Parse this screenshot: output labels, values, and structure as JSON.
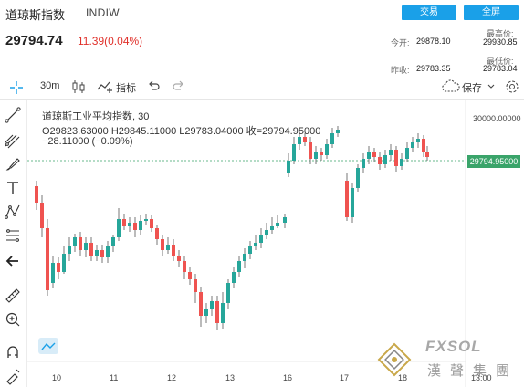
{
  "header": {
    "name": "道琼斯指数",
    "code": "INDIW",
    "trade_button": "交易",
    "fullscreen_button": "全屏",
    "price": "29794.74",
    "change": "11.39(0.04%)",
    "open_label": "今开:",
    "open_value": "29878.10",
    "high_label": "最高价:",
    "high_value": "29930.85",
    "prev_close_label": "昨收:",
    "prev_close_value": "29783.35",
    "low_label": "最低价:",
    "low_value": "29783.04"
  },
  "toolbar": {
    "interval": "30m",
    "indicators": "指标",
    "save": "保存"
  },
  "legend": {
    "title": "道琼斯工业平均指数, 30",
    "ohlc": "O29823.63000  H29845.11000  L29783.04000  收=29794.95000",
    "change": "−28.11000 (−0.09%)"
  },
  "chart_data": {
    "type": "candlestick",
    "y_tick_labels": [
      "30000.00000"
    ],
    "current_price_label": "29794.95000",
    "x_tick_labels": [
      "10",
      "11",
      "12",
      "13",
      "16",
      "17",
      "18",
      "13:00"
    ],
    "up_color": "#26a69a",
    "down_color": "#ef5350"
  },
  "watermark": {
    "brand": "FXSOL",
    "chinese": "漢聲集團"
  },
  "colors": {
    "accent": "#1aa0e8",
    "up": "#26a69a",
    "down": "#ef5350",
    "price_change": "#e0302a",
    "current_price_bg": "#3aa46a"
  }
}
